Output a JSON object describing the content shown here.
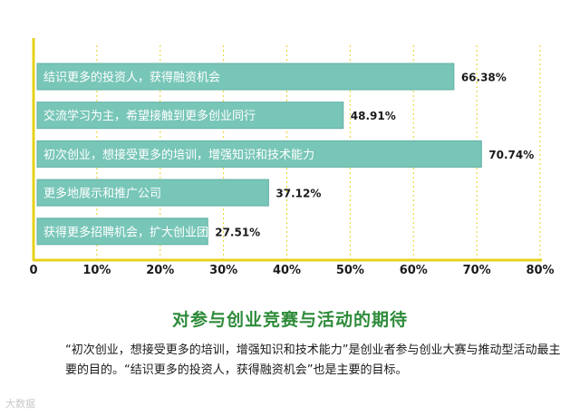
{
  "chart_data": {
    "type": "bar",
    "orientation": "horizontal",
    "categories": [
      "结识更多的投资人，获得融资机会",
      "交流学习为主，希望接触到更多创业同行",
      "初次创业，想接受更多的培训，增强知识和技术能力",
      "更多地展示和推广公司",
      "获得更多招聘机会，扩大创业团队"
    ],
    "values": [
      66.38,
      48.91,
      70.74,
      37.12,
      27.51
    ],
    "value_labels": [
      "66.38%",
      "48.91%",
      "70.74%",
      "37.12%",
      "27.51%"
    ],
    "x_ticks": [
      "0",
      "10%",
      "20%",
      "30%",
      "40%",
      "50%",
      "60%",
      "70%",
      "80%"
    ],
    "xlim": [
      0,
      80
    ],
    "grid": true,
    "title": "对参与创业竞赛与活动的期待",
    "colors": {
      "bar": "#78c6b8",
      "bar_stroke": "#5fb1a3",
      "axis": "#e7d21c",
      "grid": "#e7d21c",
      "title": "#2e8b3a"
    }
  },
  "caption": "“初次创业，想接受更多的培训，增强知识和技术能力”是创业者参与创业大赛与推动型活动最主要的目的。“结识更多的投资人，获得融资机会”也是主要的目标。",
  "watermark": "大数据"
}
